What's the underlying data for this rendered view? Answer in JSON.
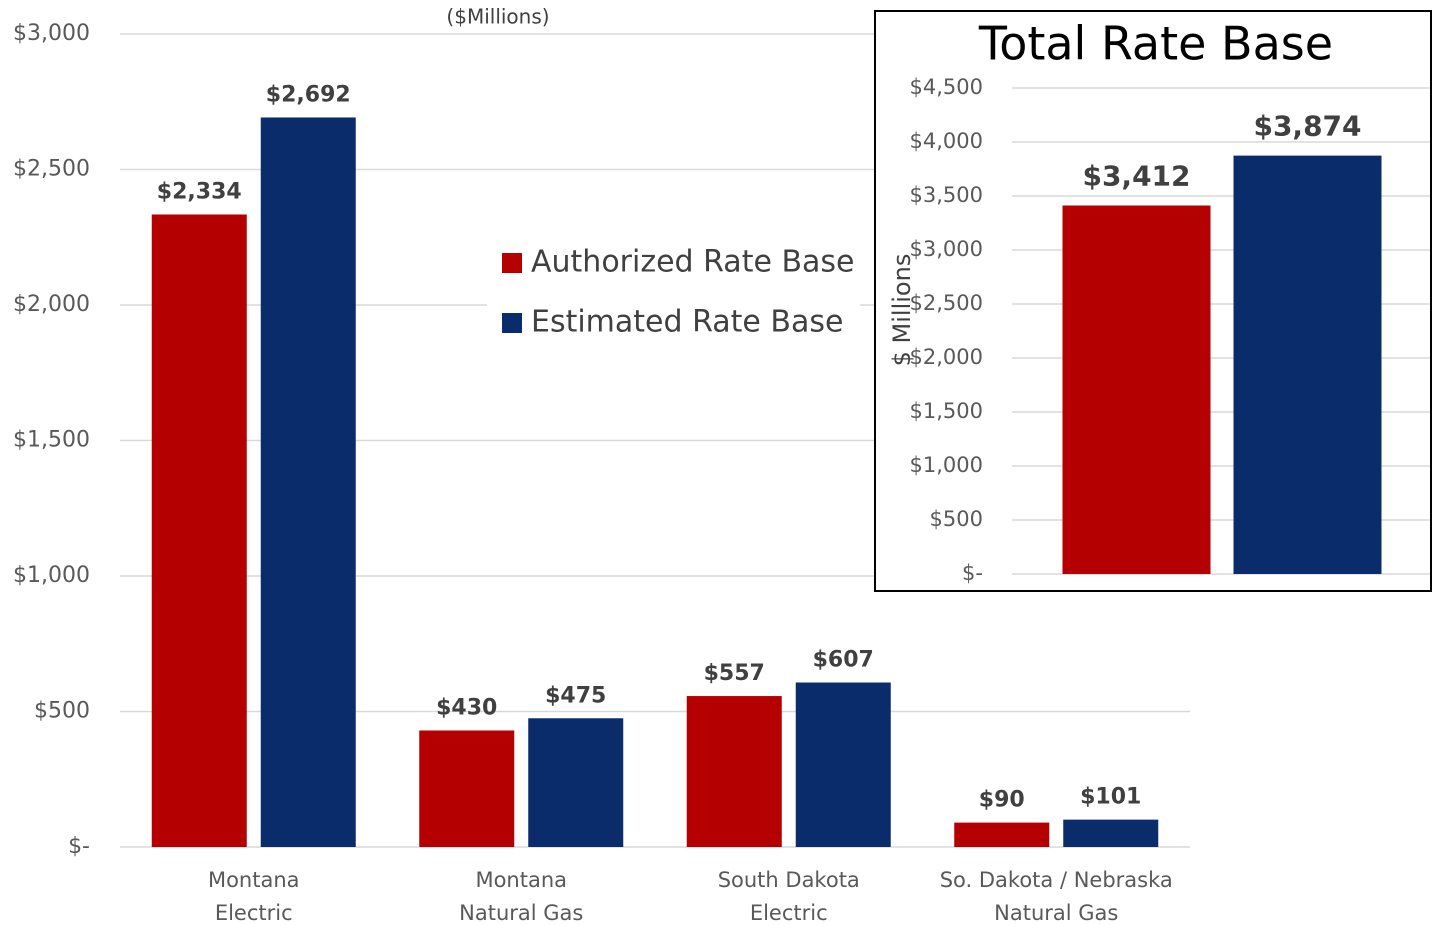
{
  "chart_data": [
    {
      "type": "bar",
      "subtitle": "($Millions)",
      "categories": [
        "Montana\nElectric",
        "Montana\nNatural Gas",
        "South Dakota\nElectric",
        "So. Dakota / Nebraska\nNatural Gas"
      ],
      "series": [
        {
          "name": "Authorized Rate Base",
          "color": "#b40000",
          "values": [
            2334,
            430,
            557,
            90
          ],
          "value_labels": [
            "$2,334",
            "$430",
            "$557",
            "$90"
          ]
        },
        {
          "name": "Estimated Rate Base",
          "color": "#0b2c6a",
          "values": [
            2692,
            475,
            607,
            101
          ],
          "value_labels": [
            "$2,692",
            "$475",
            "$607",
            "$101"
          ]
        }
      ],
      "ylim": [
        0,
        3000
      ],
      "yticks": [
        {
          "value": 0,
          "label": "$-"
        },
        {
          "value": 500,
          "label": "$500"
        },
        {
          "value": 1000,
          "label": "$1,000"
        },
        {
          "value": 1500,
          "label": "$1,500"
        },
        {
          "value": 2000,
          "label": "$2,000"
        },
        {
          "value": 2500,
          "label": "$2,500"
        },
        {
          "value": 3000,
          "label": "$3,000"
        }
      ],
      "grid": true,
      "legend": "center"
    },
    {
      "type": "bar",
      "title": "Total Rate Base",
      "y_label": "$ Millions",
      "categories": [
        null
      ],
      "series": [
        {
          "color": "#b40000",
          "values": [
            3412
          ],
          "value_labels": [
            "$3,412"
          ]
        },
        {
          "color": "#0b2c6a",
          "values": [
            3874
          ],
          "value_labels": [
            "$3,874"
          ]
        }
      ],
      "ylim": [
        0,
        4500
      ],
      "yticks": [
        {
          "value": 0,
          "label": "$-"
        },
        {
          "value": 500,
          "label": "$500"
        },
        {
          "value": 1000,
          "label": "$1,000"
        },
        {
          "value": 1500,
          "label": "$1,500"
        },
        {
          "value": 2000,
          "label": "$2,000"
        },
        {
          "value": 2500,
          "label": "$2,500"
        },
        {
          "value": 3000,
          "label": "$3,000"
        },
        {
          "value": 3500,
          "label": "$3,500"
        },
        {
          "value": 4000,
          "label": "$4,000"
        },
        {
          "value": 4500,
          "label": "$4,500"
        }
      ],
      "grid": true
    }
  ]
}
